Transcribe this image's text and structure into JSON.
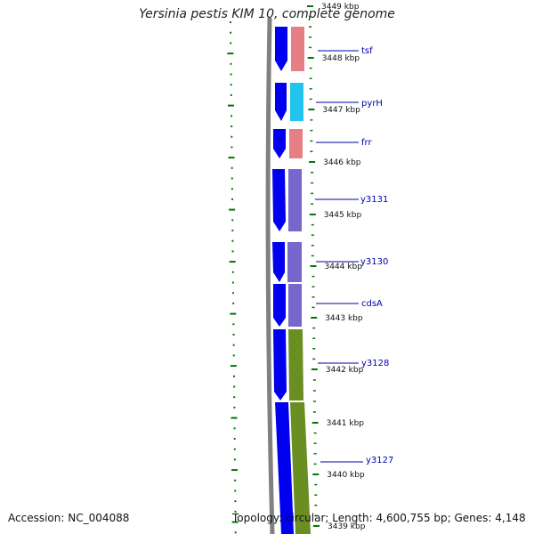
{
  "title": "Yersinia pestis KIM 10, complete genome",
  "accession": "Accession: NC_004088",
  "summary": "Topology: circular; Length: 4,600,755 bp; Genes: 4,148",
  "kbp_labels": [
    "3449 kbp",
    "3448 kbp",
    "3447 kbp",
    "3446 kbp",
    "3445 kbp",
    "3444 kbp",
    "3443 kbp",
    "3442 kbp",
    "3441 kbp",
    "3440 kbp",
    "3439 kbp"
  ],
  "genes": [
    "tsf",
    "pyrH",
    "frr",
    "y3131",
    "y3130",
    "cdsA",
    "y3128",
    "y3127"
  ],
  "colors": {
    "backbone": "#808080",
    "forward_arrow": "#0000ee",
    "tsf": "#e57f84",
    "pyrH": "#22c4ee",
    "frr": "#e57f84",
    "y3131": "#7766cc",
    "y3130": "#7766cc",
    "cdsA": "#7766cc",
    "y3128": "#6b8e23",
    "y3127": "#6b8e23",
    "ticks_green": "#007700",
    "label_line": "#0000aa"
  }
}
